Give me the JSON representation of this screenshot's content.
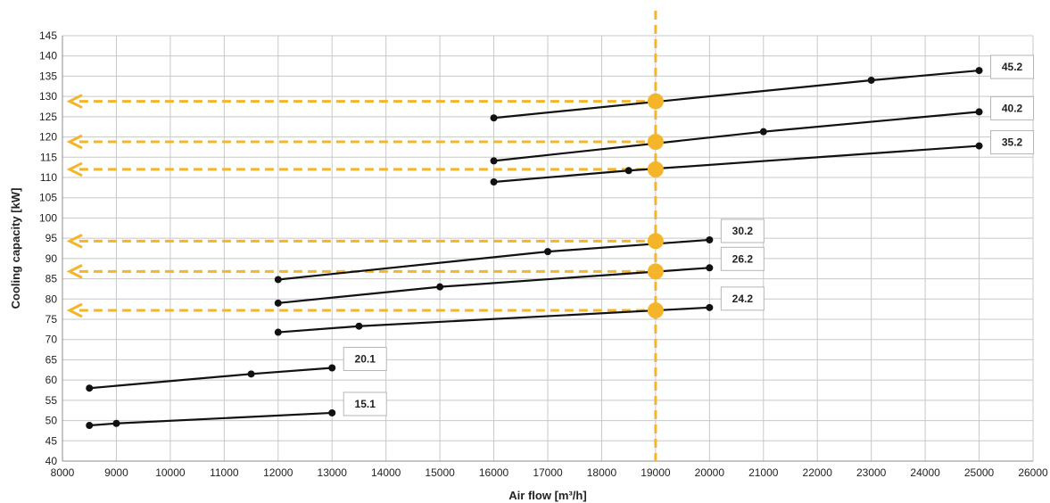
{
  "chart_data": {
    "type": "line",
    "xlabel": "Air flow [m³/h]",
    "ylabel": "Cooling capacity [kW]",
    "xlim": [
      8000,
      26000
    ],
    "ylim": [
      40,
      145
    ],
    "xticks": [
      8000,
      9000,
      10000,
      11000,
      12000,
      13000,
      14000,
      15000,
      16000,
      17000,
      18000,
      19000,
      20000,
      21000,
      22000,
      23000,
      24000,
      25000,
      26000
    ],
    "yticks": [
      40,
      45,
      50,
      55,
      60,
      65,
      70,
      75,
      80,
      85,
      90,
      95,
      100,
      105,
      110,
      115,
      120,
      125,
      130,
      135,
      140,
      145
    ],
    "grid": true,
    "series": [
      {
        "name": "15.1",
        "points": [
          [
            8500,
            48.8
          ],
          [
            9000,
            49.3
          ],
          [
            13000,
            51.9
          ]
        ]
      },
      {
        "name": "20.1",
        "points": [
          [
            8500,
            58
          ],
          [
            11500,
            61.5
          ],
          [
            13000,
            63
          ]
        ]
      },
      {
        "name": "24.2",
        "points": [
          [
            12000,
            71.8
          ],
          [
            13500,
            73.3
          ],
          [
            20000,
            77.9
          ]
        ]
      },
      {
        "name": "26.2",
        "points": [
          [
            12000,
            79
          ],
          [
            15000,
            83
          ],
          [
            20000,
            87.7
          ]
        ]
      },
      {
        "name": "30.2",
        "points": [
          [
            12000,
            84.8
          ],
          [
            17000,
            91.7
          ],
          [
            20000,
            94.6
          ]
        ]
      },
      {
        "name": "35.2",
        "points": [
          [
            16000,
            108.9
          ],
          [
            18500,
            111.7
          ],
          [
            25000,
            117.8
          ]
        ]
      },
      {
        "name": "40.2",
        "points": [
          [
            16000,
            114.1
          ],
          [
            21000,
            121.3
          ],
          [
            25000,
            126.2
          ]
        ]
      },
      {
        "name": "45.2",
        "points": [
          [
            16000,
            124.7
          ],
          [
            23000,
            134
          ],
          [
            25000,
            136.4
          ]
        ]
      }
    ],
    "annotations": {
      "selected_airflow": 19000,
      "reference_color": "#f5b52a",
      "readings_kW": [
        128.8,
        118.8,
        112.0,
        94.3,
        86.8,
        77.2
      ]
    }
  }
}
